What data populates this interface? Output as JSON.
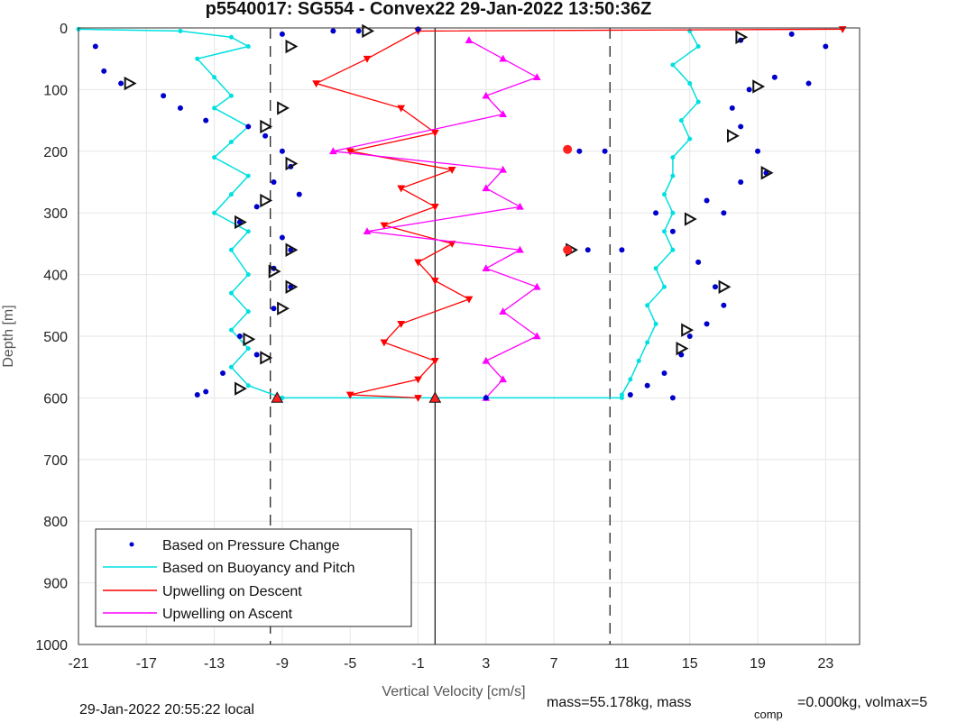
{
  "chart_data": {
    "type": "scatter",
    "title": "p5540017: SG554 - Convex22 29-Jan-2022 13:50:36Z",
    "xlabel": "Vertical Velocity [cm/s]",
    "ylabel": "Depth [m]",
    "xlim": [
      -21,
      25
    ],
    "ylim": [
      0,
      1000
    ],
    "y_reversed": true,
    "grid": true,
    "xticks": [
      -21,
      -17,
      -13,
      -9,
      -5,
      -1,
      3,
      7,
      11,
      15,
      19,
      23
    ],
    "yticks": [
      0,
      100,
      200,
      300,
      400,
      500,
      600,
      700,
      800,
      900,
      1000
    ],
    "legend_location": "bottom-left",
    "series": [
      {
        "name": "Based on Pressure Change",
        "marker": "dot",
        "color": "#0000cc",
        "points": [
          [
            -20.0,
            30
          ],
          [
            -19.5,
            70
          ],
          [
            -18.5,
            90
          ],
          [
            -16.0,
            110
          ],
          [
            -15.0,
            130
          ],
          [
            -13.5,
            150
          ],
          [
            -11.0,
            160
          ],
          [
            -10.0,
            175
          ],
          [
            -9.0,
            200
          ],
          [
            -8.5,
            225
          ],
          [
            -9.5,
            250
          ],
          [
            -8.0,
            270
          ],
          [
            -10.5,
            290
          ],
          [
            -11.5,
            315
          ],
          [
            -9.0,
            340
          ],
          [
            -8.5,
            360
          ],
          [
            -9.5,
            390
          ],
          [
            -8.5,
            420
          ],
          [
            -9.5,
            455
          ],
          [
            -11.5,
            500
          ],
          [
            -10.5,
            530
          ],
          [
            -12.5,
            560
          ],
          [
            -13.5,
            590
          ],
          [
            -14.0,
            595
          ],
          [
            -9.0,
            10
          ],
          [
            -6.0,
            5
          ],
          [
            -4.5,
            5
          ],
          [
            -1.0,
            2
          ],
          [
            3.0,
            600
          ],
          [
            8.5,
            200
          ],
          [
            9.0,
            360
          ],
          [
            10.0,
            200
          ],
          [
            11.0,
            360
          ],
          [
            13.0,
            300
          ],
          [
            14.0,
            330
          ],
          [
            16.0,
            280
          ],
          [
            17.0,
            300
          ],
          [
            18.0,
            250
          ],
          [
            19.5,
            235
          ],
          [
            19.0,
            200
          ],
          [
            18.0,
            160
          ],
          [
            17.5,
            130
          ],
          [
            18.5,
            100
          ],
          [
            20.0,
            80
          ],
          [
            22.0,
            90
          ],
          [
            23.0,
            30
          ],
          [
            21.0,
            10
          ],
          [
            18.0,
            20
          ],
          [
            15.5,
            380
          ],
          [
            16.5,
            420
          ],
          [
            17.0,
            450
          ],
          [
            16.0,
            480
          ],
          [
            15.0,
            500
          ],
          [
            14.5,
            530
          ],
          [
            13.5,
            560
          ],
          [
            12.5,
            580
          ],
          [
            11.5,
            595
          ],
          [
            14.0,
            600
          ]
        ]
      },
      {
        "name": "Based on Buoyancy and Pitch",
        "marker": "line-dot",
        "color": "#00e0e0",
        "descent": [
          [
            -21,
            2
          ],
          [
            -15,
            5
          ],
          [
            -12,
            15
          ],
          [
            -11,
            30
          ],
          [
            -14,
            50
          ],
          [
            -13,
            80
          ],
          [
            -12,
            110
          ],
          [
            -13,
            130
          ],
          [
            -11,
            160
          ],
          [
            -12,
            185
          ],
          [
            -13,
            210
          ],
          [
            -11,
            240
          ],
          [
            -12,
            270
          ],
          [
            -13,
            300
          ],
          [
            -11,
            330
          ],
          [
            -12,
            360
          ],
          [
            -11,
            400
          ],
          [
            -12,
            430
          ],
          [
            -11,
            460
          ],
          [
            -12,
            490
          ],
          [
            -11,
            520
          ],
          [
            -12,
            550
          ],
          [
            -11,
            580
          ],
          [
            -9,
            600
          ],
          [
            11,
            600
          ]
        ],
        "ascent": [
          [
            15,
            5
          ],
          [
            15.5,
            30
          ],
          [
            14,
            60
          ],
          [
            15,
            90
          ],
          [
            15.5,
            120
          ],
          [
            14.5,
            150
          ],
          [
            15,
            180
          ],
          [
            14,
            210
          ],
          [
            14,
            240
          ],
          [
            13.5,
            270
          ],
          [
            14,
            300
          ],
          [
            13.5,
            330
          ],
          [
            14,
            360
          ],
          [
            13,
            390
          ],
          [
            13.5,
            420
          ],
          [
            12.5,
            450
          ],
          [
            13,
            480
          ],
          [
            12.5,
            510
          ],
          [
            12,
            540
          ],
          [
            11.5,
            570
          ],
          [
            11,
            595
          ]
        ]
      },
      {
        "name": "Upwelling on Descent",
        "marker": "line-triangle-down",
        "color": "#ff0000",
        "points": [
          [
            24,
            2
          ],
          [
            -1,
            5
          ],
          [
            -4,
            50
          ],
          [
            -7,
            90
          ],
          [
            -2,
            130
          ],
          [
            0,
            170
          ],
          [
            -5,
            200
          ],
          [
            1,
            230
          ],
          [
            -2,
            260
          ],
          [
            0,
            290
          ],
          [
            -3,
            320
          ],
          [
            1,
            350
          ],
          [
            -1,
            380
          ],
          [
            0,
            410
          ],
          [
            2,
            440
          ],
          [
            -2,
            480
          ],
          [
            -3,
            510
          ],
          [
            0,
            540
          ],
          [
            -1,
            570
          ],
          [
            -5,
            595
          ],
          [
            -1,
            600
          ]
        ]
      },
      {
        "name": "Upwelling on Ascent",
        "marker": "line-triangle-up",
        "color": "#ff00ff",
        "points": [
          [
            2,
            20
          ],
          [
            4,
            50
          ],
          [
            6,
            80
          ],
          [
            3,
            110
          ],
          [
            4,
            140
          ],
          [
            -6,
            200
          ],
          [
            4,
            230
          ],
          [
            3,
            260
          ],
          [
            5,
            290
          ],
          [
            -4,
            330
          ],
          [
            5,
            360
          ],
          [
            3,
            390
          ],
          [
            6,
            420
          ],
          [
            4,
            460
          ],
          [
            6,
            500
          ],
          [
            3,
            540
          ],
          [
            4,
            570
          ],
          [
            3,
            600
          ]
        ]
      }
    ],
    "vertical_lines": [
      {
        "x": -9.7,
        "style": "dashed"
      },
      {
        "x": 0.0,
        "style": "solid"
      },
      {
        "x": 10.3,
        "style": "dashed"
      }
    ],
    "triangle_markers": [
      {
        "x": -4.0,
        "y": 5
      },
      {
        "x": -8.5,
        "y": 30
      },
      {
        "x": -18.0,
        "y": 90
      },
      {
        "x": -9.0,
        "y": 130
      },
      {
        "x": -10.0,
        "y": 160
      },
      {
        "x": -8.5,
        "y": 220
      },
      {
        "x": -10.0,
        "y": 280
      },
      {
        "x": -11.5,
        "y": 315
      },
      {
        "x": -8.5,
        "y": 360
      },
      {
        "x": -9.5,
        "y": 395
      },
      {
        "x": -8.5,
        "y": 420
      },
      {
        "x": -9.0,
        "y": 455
      },
      {
        "x": -11.0,
        "y": 505
      },
      {
        "x": -10.0,
        "y": 535
      },
      {
        "x": -11.5,
        "y": 585
      },
      {
        "x": 18.0,
        "y": 15
      },
      {
        "x": 19.0,
        "y": 95
      },
      {
        "x": 17.5,
        "y": 175
      },
      {
        "x": 19.5,
        "y": 235
      },
      {
        "x": 15.0,
        "y": 310
      },
      {
        "x": 8.0,
        "y": 360
      },
      {
        "x": 17.0,
        "y": 420
      },
      {
        "x": 14.8,
        "y": 490
      },
      {
        "x": 14.5,
        "y": 520
      }
    ],
    "red_markers": [
      {
        "x": -9.3,
        "y": 600,
        "shape": "triangle-up"
      },
      {
        "x": 0.0,
        "y": 600,
        "shape": "triangle-up"
      },
      {
        "x": 7.8,
        "y": 197,
        "shape": "circle"
      },
      {
        "x": 7.8,
        "y": 360,
        "shape": "circle"
      }
    ]
  },
  "legend": [
    {
      "label": "Based on Pressure Change",
      "color": "#0000cc",
      "kind": "dot"
    },
    {
      "label": "Based on Buoyancy and Pitch",
      "color": "#00e0e0",
      "kind": "line"
    },
    {
      "label": "Upwelling on Descent",
      "color": "#ff0000",
      "kind": "line"
    },
    {
      "label": "Upwelling on Ascent",
      "color": "#ff00ff",
      "kind": "line"
    }
  ],
  "footer": {
    "local_time": "29-Jan-2022 20:55:22 local",
    "mass_text": "mass=55.178kg, mass",
    "comp_sub": "comp",
    "volmax_text": "=0.000kg, volmax=5"
  }
}
